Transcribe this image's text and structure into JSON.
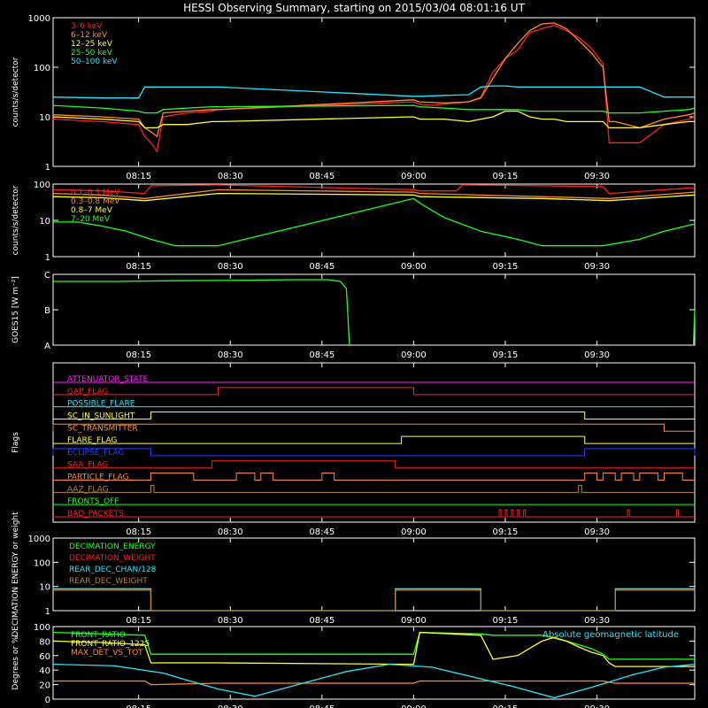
{
  "title": "HESSI Observing Summary, starting on 2015/03/04 08:01:16 UT",
  "x_ticks": [
    "08:15",
    "08:30",
    "08:45",
    "09:00",
    "09:15",
    "09:30"
  ],
  "colors": {
    "red": "#ff2020",
    "orange": "#ff8a30",
    "yellow": "#ffff30",
    "green": "#20ff20",
    "cyan": "#20e8ff",
    "magenta": "#ff20ff",
    "brown": "#b8862e",
    "blue": "#2040ff",
    "white": "#ffffff"
  },
  "chart_data": [
    {
      "type": "line",
      "ylabel": "counts/s/detector",
      "yscale": "log",
      "ylim": [
        1,
        1000
      ],
      "y_ticks": [
        "1",
        "10",
        "100",
        "1000"
      ],
      "xlim_min": [
        0,
        105
      ],
      "legend": [
        "3–6 keV",
        "6–12 keV",
        "12–25 keV",
        "25–50 keV",
        "50–100 keV"
      ],
      "legend_colors": [
        "red",
        "orange",
        "yellow",
        "green",
        "cyan"
      ],
      "note_gap_min": [
        27,
        59
      ],
      "series": [
        {
          "name": "3–6 keV",
          "color": "red",
          "x": [
            0,
            8,
            14,
            15,
            16,
            17,
            18,
            22,
            26,
            27,
            59,
            60,
            62,
            64,
            68,
            70,
            72,
            74,
            76,
            77,
            78,
            80,
            82,
            84,
            86,
            88,
            90,
            91,
            92,
            96,
            100,
            104,
            105
          ],
          "y": [
            9,
            8,
            7,
            4,
            3,
            2,
            10,
            12,
            13,
            14,
            20,
            18,
            17,
            18,
            20,
            25,
            80,
            150,
            220,
            330,
            500,
            600,
            700,
            550,
            400,
            250,
            120,
            3,
            3,
            3,
            7,
            9,
            10
          ]
        },
        {
          "name": "6–12 keV",
          "color": "orange",
          "x": [
            0,
            8,
            14,
            15,
            16,
            17,
            18,
            22,
            26,
            27,
            59,
            60,
            64,
            68,
            70,
            72,
            74,
            76,
            78,
            80,
            82,
            84,
            86,
            88,
            90,
            91,
            92,
            96,
            100,
            104,
            105
          ],
          "y": [
            11,
            10,
            9,
            6,
            5,
            4,
            12,
            13,
            14,
            14,
            22,
            20,
            19,
            20,
            24,
            60,
            150,
            300,
            550,
            750,
            780,
            600,
            350,
            200,
            100,
            8,
            8,
            6,
            9,
            11,
            12
          ]
        },
        {
          "name": "12–25 keV",
          "color": "yellow",
          "x": [
            0,
            8,
            14,
            15,
            16,
            17,
            18,
            22,
            26,
            27,
            59,
            60,
            64,
            68,
            70,
            72,
            74,
            76,
            78,
            80,
            82,
            84,
            86,
            88,
            90,
            91,
            92,
            96,
            100,
            104,
            105
          ],
          "y": [
            10,
            9,
            8,
            6,
            6,
            6,
            7,
            7,
            8,
            8,
            10,
            9,
            9,
            8,
            9,
            10,
            13,
            13,
            10,
            9,
            9,
            8,
            8,
            8,
            8,
            6,
            6,
            6,
            7,
            8,
            8
          ]
        },
        {
          "name": "25–50 keV",
          "color": "green",
          "x": [
            0,
            8,
            14,
            15,
            16,
            17,
            18,
            22,
            26,
            27,
            59,
            60,
            64,
            68,
            70,
            72,
            74,
            76,
            78,
            80,
            82,
            84,
            86,
            88,
            90,
            91,
            92,
            96,
            100,
            104,
            105
          ],
          "y": [
            17,
            15,
            13,
            12,
            12,
            12,
            14,
            15,
            16,
            16,
            17,
            16,
            15,
            14,
            14,
            14,
            14,
            14,
            13,
            13,
            13,
            13,
            13,
            13,
            13,
            12,
            12,
            12,
            13,
            14,
            15
          ]
        },
        {
          "name": "50–100 keV",
          "color": "cyan",
          "x": [
            0,
            8,
            14,
            15,
            16,
            17,
            18,
            22,
            26,
            27,
            59,
            60,
            64,
            68,
            70,
            72,
            74,
            76,
            78,
            80,
            82,
            84,
            86,
            88,
            90,
            91,
            92,
            96,
            100,
            104,
            105
          ],
          "y": [
            25,
            24,
            24,
            40,
            40,
            40,
            40,
            40,
            40,
            40,
            26,
            26,
            27,
            28,
            40,
            42,
            42,
            40,
            40,
            40,
            40,
            40,
            40,
            40,
            40,
            40,
            40,
            40,
            25,
            25,
            25
          ]
        }
      ]
    },
    {
      "type": "line",
      "ylabel": "counts/s/detector",
      "yscale": "log",
      "ylim": [
        1,
        100
      ],
      "y_ticks": [
        "1",
        "10",
        "100"
      ],
      "legend": [
        "0.1–0.3 MeV",
        "0.3–0.8 MeV",
        "0.8–7 MeV",
        "7–20 MeV"
      ],
      "legend_colors": [
        "red",
        "orange",
        "yellow",
        "green"
      ],
      "series": [
        {
          "name": "0.1–0.3 MeV",
          "color": "red",
          "x": [
            0,
            8,
            15,
            16,
            27,
            59,
            60,
            66,
            67,
            80,
            90,
            91,
            105
          ],
          "y": [
            70,
            65,
            55,
            90,
            95,
            70,
            65,
            65,
            95,
            90,
            85,
            55,
            80
          ]
        },
        {
          "name": "0.3–0.8 MeV",
          "color": "orange",
          "x": [
            0,
            8,
            15,
            27,
            59,
            60,
            80,
            91,
            105
          ],
          "y": [
            55,
            50,
            40,
            70,
            60,
            55,
            45,
            40,
            60
          ]
        },
        {
          "name": "0.8–7 MeV",
          "color": "yellow",
          "x": [
            0,
            8,
            15,
            27,
            59,
            60,
            80,
            91,
            105
          ],
          "y": [
            45,
            42,
            35,
            55,
            50,
            45,
            40,
            35,
            50
          ]
        },
        {
          "name": "7–20 MeV",
          "color": "green",
          "x": [
            0,
            4,
            8,
            12,
            16,
            20,
            27,
            59,
            60,
            64,
            70,
            76,
            80,
            86,
            90,
            96,
            100,
            105
          ],
          "y": [
            9,
            9,
            7,
            5,
            3,
            2,
            2,
            40,
            30,
            12,
            5,
            3,
            2,
            2,
            2,
            3,
            5,
            8
          ]
        }
      ]
    },
    {
      "type": "line",
      "ylabel": "GOES15 [W m⁻²]",
      "y_ticks": [
        "A",
        "B",
        "C"
      ],
      "ylim": [
        0,
        2
      ],
      "series": [
        {
          "name": "GOES15",
          "color": "green",
          "x": [
            0,
            10,
            20,
            30,
            40,
            45,
            47,
            48,
            48.5
          ],
          "y": [
            1.8,
            1.8,
            1.82,
            1.83,
            1.85,
            1.85,
            1.8,
            1.6,
            0
          ]
        },
        {
          "name": "GOES15 end",
          "color": "green",
          "x": [
            104.8,
            105
          ],
          "y": [
            0,
            1.0
          ]
        }
      ]
    },
    {
      "type": "table",
      "ylabel": "Flags",
      "flags": [
        {
          "name": "ATTENUATOR_STATE",
          "color": "magenta",
          "segments": []
        },
        {
          "name": "GAP_FLAG",
          "color": "red",
          "segments": [
            [
              27,
              59
            ]
          ]
        },
        {
          "name": "POSSIBLE_FLARE",
          "color": "cyan",
          "segments": []
        },
        {
          "name": "SC_IN_SUNLIGHT",
          "color": "yellow",
          "segments": [
            [
              16,
              87
            ]
          ]
        },
        {
          "name": "SC_TRANSMITTER",
          "color": "orange",
          "segments": [
            [
              0,
              100
            ]
          ]
        },
        {
          "name": "FLARE_FLAG",
          "color": "yellow",
          "segments": [
            [
              57,
              87
            ]
          ]
        },
        {
          "name": "ECLIPSE_FLAG",
          "color": "blue",
          "segments": [
            [
              0,
              16
            ],
            [
              87,
              105
            ]
          ]
        },
        {
          "name": "SAA_FLAG",
          "color": "red",
          "segments": [
            [
              26,
              56
            ]
          ]
        },
        {
          "name": "PARTICLE_FLAG",
          "color": "orange",
          "segments": [
            [
              16,
              23
            ],
            [
              30,
              33
            ],
            [
              34,
              36
            ],
            [
              44,
              46
            ],
            [
              87,
              89
            ],
            [
              90,
              92
            ],
            [
              93,
              95
            ],
            [
              96,
              99
            ],
            [
              100,
              103
            ]
          ]
        },
        {
          "name": "AAZ_FLAG",
          "color": "brown",
          "segments": [
            [
              16,
              16.5
            ],
            [
              86,
              86.5
            ]
          ]
        },
        {
          "name": "FRONTS_OFF",
          "color": "green",
          "segments": []
        },
        {
          "name": "BAD_PACKETS",
          "color": "red",
          "segments": [
            [
              73,
              73.3
            ],
            [
              74,
              74.3
            ],
            [
              75,
              75.3
            ],
            [
              76,
              76.3
            ],
            [
              77,
              77.3
            ],
            [
              94,
              94.3
            ],
            [
              102,
              102.3
            ]
          ]
        }
      ]
    },
    {
      "type": "line",
      "ylabel": "DECIMATION ENERGY or weight",
      "yscale": "log",
      "ylim": [
        1,
        1000
      ],
      "y_ticks": [
        "1",
        "10",
        "100",
        "1000"
      ],
      "legend": [
        "DECIMATION_ENERGY",
        "DECIMATION_WEIGHT",
        "REAR_DEC_CHAN/128",
        "REAR_DEC_WEIGHT"
      ],
      "legend_colors": [
        "green",
        "red",
        "cyan",
        "brown"
      ],
      "series": [
        {
          "name": "REAR_DEC_CHAN/128",
          "color": "cyan",
          "x": [
            0,
            16,
            16.01,
            56,
            56.01,
            70,
            70.01,
            92,
            92.01,
            105
          ],
          "y": [
            8,
            8,
            1,
            1,
            8,
            8,
            1,
            1,
            8,
            8
          ]
        },
        {
          "name": "REAR_DEC_WEIGHT",
          "color": "brown",
          "x": [
            0,
            16,
            16.01,
            56,
            56.01,
            70,
            70.01,
            92,
            92.01,
            105
          ],
          "y": [
            7,
            7,
            1,
            1,
            7,
            7,
            1,
            1,
            7,
            7
          ]
        }
      ]
    },
    {
      "type": "line",
      "ylabel": "Degrees or %",
      "ylim": [
        0,
        100
      ],
      "y_ticks": [
        "0",
        "20",
        "40",
        "60",
        "80",
        "100"
      ],
      "legend": [
        "FRONT_RATIO",
        "FRONT_RATIO_1225",
        "MAX_DET_VS_TOT"
      ],
      "legend_colors": [
        "green",
        "yellow",
        "orange"
      ],
      "annotation": "Absolute geomagnetic latitude",
      "series": [
        {
          "name": "FRONT_RATIO",
          "color": "green",
          "x": [
            0,
            8,
            15,
            16,
            27,
            59,
            60,
            70,
            72,
            80,
            84,
            88,
            90,
            91,
            92,
            100,
            105
          ],
          "y": [
            92,
            90,
            88,
            62,
            62,
            62,
            92,
            90,
            88,
            88,
            80,
            70,
            62,
            55,
            55,
            55,
            55
          ]
        },
        {
          "name": "FRONT_RATIO_1225",
          "color": "yellow",
          "x": [
            0,
            8,
            15,
            16,
            27,
            59,
            60,
            70,
            72,
            76,
            78,
            80,
            82,
            84,
            86,
            88,
            90,
            91,
            92,
            100,
            105
          ],
          "y": [
            80,
            78,
            75,
            50,
            50,
            48,
            92,
            88,
            55,
            60,
            70,
            80,
            85,
            80,
            72,
            65,
            60,
            50,
            45,
            45,
            45
          ]
        },
        {
          "name": "MAX_DET_VS_TOT",
          "color": "orange",
          "x": [
            0,
            15,
            16,
            27,
            59,
            60,
            70,
            80,
            90,
            92,
            105
          ],
          "y": [
            25,
            25,
            20,
            22,
            22,
            25,
            25,
            25,
            25,
            22,
            22
          ]
        },
        {
          "name": "Absolute geomagnetic latitude",
          "color": "cyan",
          "x": [
            0,
            10,
            18,
            22,
            27,
            33,
            40,
            48,
            55,
            62,
            68,
            75,
            82,
            88,
            95,
            100,
            105
          ],
          "y": [
            48,
            46,
            36,
            26,
            14,
            4,
            20,
            38,
            48,
            44,
            32,
            18,
            2,
            16,
            34,
            44,
            48
          ]
        }
      ]
    }
  ]
}
